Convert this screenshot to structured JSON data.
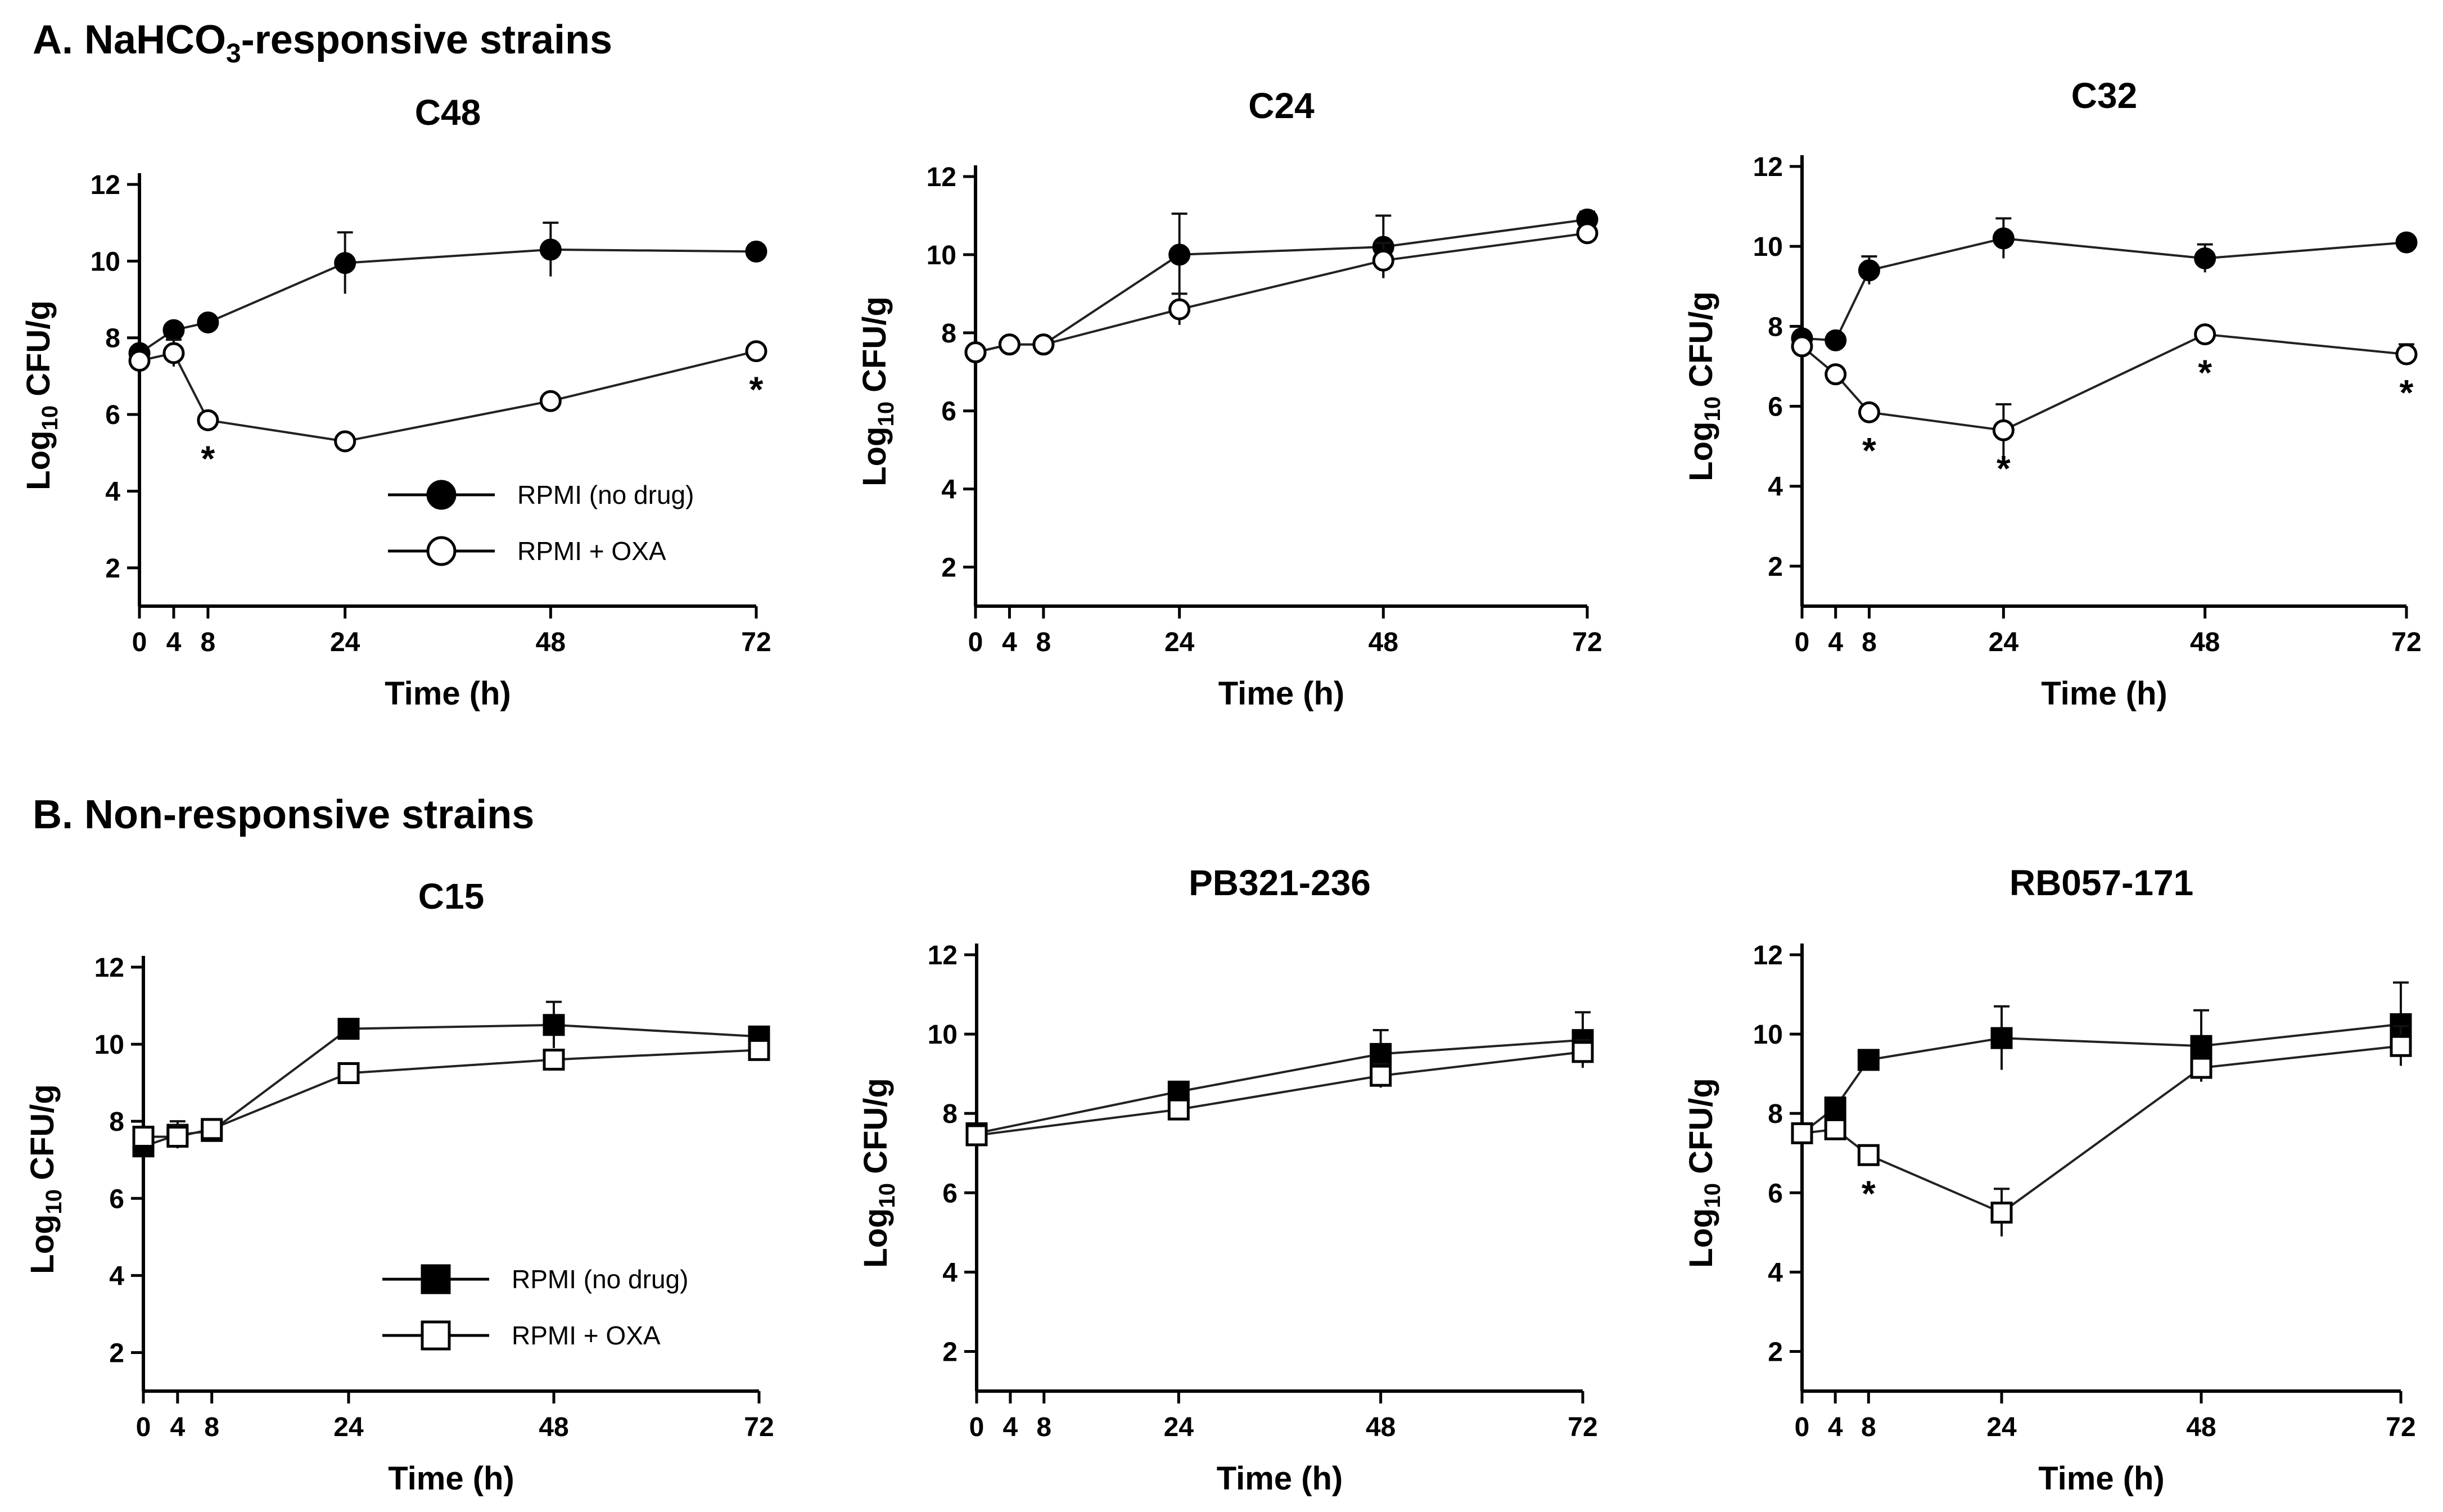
{
  "sections": [
    {
      "prefix": "A. NaHCO",
      "sub": "3",
      "suffix": "-responsive strains"
    },
    {
      "prefix": "B. Non-responsive strains",
      "sub": "",
      "suffix": ""
    }
  ],
  "chart_data": [
    {
      "type": "line",
      "section": 0,
      "title": "C48",
      "marker": "circle",
      "xlabel": "Time (h)",
      "ylabel_main": "Log",
      "ylabel_sub": "10",
      "ylabel_rest": " CFU/g",
      "xticks": [
        0,
        4,
        8,
        24,
        48,
        72
      ],
      "yticks": [
        2,
        4,
        6,
        8,
        10,
        12
      ],
      "xlim": [
        0,
        72
      ],
      "ylim": [
        1,
        12
      ],
      "series": [
        {
          "name": "RPMI (no drug)",
          "fill": "filled",
          "x": [
            0,
            4,
            8,
            24,
            48,
            72
          ],
          "y": [
            7.6,
            8.2,
            8.4,
            9.95,
            10.3,
            10.25
          ],
          "err": [
            0.15,
            0.1,
            0.1,
            0.8,
            0.7,
            0.1
          ]
        },
        {
          "name": "RPMI + OXA",
          "fill": "open",
          "x": [
            0,
            4,
            8,
            24,
            48,
            72
          ],
          "y": [
            7.4,
            7.6,
            5.85,
            5.3,
            6.35,
            7.65
          ],
          "err": [
            0.15,
            0.35,
            0.1,
            0.1,
            0.1,
            0.1
          ]
        }
      ],
      "significance": [
        {
          "x": 8,
          "y": 5.85
        },
        {
          "x": 72,
          "y": 7.65
        }
      ],
      "legend": [
        {
          "label": "RPMI (no drug)",
          "fill": "filled"
        },
        {
          "label": "RPMI + OXA",
          "fill": "open"
        }
      ]
    },
    {
      "type": "line",
      "section": 0,
      "title": "C24",
      "marker": "circle",
      "xlabel": "Time (h)",
      "ylabel_main": "Log",
      "ylabel_sub": "10",
      "ylabel_rest": " CFU/g",
      "xticks": [
        0,
        4,
        8,
        24,
        48,
        72
      ],
      "yticks": [
        2,
        4,
        6,
        8,
        10,
        12
      ],
      "xlim": [
        0,
        72
      ],
      "ylim": [
        1,
        12
      ],
      "series": [
        {
          "name": "RPMI (no drug)",
          "fill": "filled",
          "x": [
            0,
            4,
            8,
            24,
            48,
            72
          ],
          "y": [
            7.5,
            7.7,
            7.7,
            10.0,
            10.2,
            10.9
          ],
          "err": [
            0.1,
            0.1,
            0.1,
            1.05,
            0.8,
            0.2
          ]
        },
        {
          "name": "RPMI + OXA",
          "fill": "open",
          "x": [
            0,
            4,
            8,
            24,
            48,
            72
          ],
          "y": [
            7.5,
            7.7,
            7.7,
            8.6,
            9.85,
            10.55
          ],
          "err": [
            0.1,
            0.1,
            0.1,
            0.4,
            0.45,
            0.1
          ]
        }
      ],
      "significance": [],
      "legend": []
    },
    {
      "type": "line",
      "section": 0,
      "title": "C32",
      "marker": "circle",
      "xlabel": "Time (h)",
      "ylabel_main": "Log",
      "ylabel_sub": "10",
      "ylabel_rest": " CFU/g",
      "xticks": [
        0,
        4,
        8,
        24,
        48,
        72
      ],
      "yticks": [
        2,
        4,
        6,
        8,
        10,
        12
      ],
      "xlim": [
        0,
        72
      ],
      "ylim": [
        1,
        12
      ],
      "series": [
        {
          "name": "RPMI (no drug)",
          "fill": "filled",
          "x": [
            0,
            4,
            8,
            24,
            48,
            72
          ],
          "y": [
            7.7,
            7.65,
            9.4,
            10.2,
            9.7,
            10.1
          ],
          "err": [
            0.1,
            0.1,
            0.35,
            0.5,
            0.35,
            0.1
          ]
        },
        {
          "name": "RPMI + OXA",
          "fill": "open",
          "x": [
            0,
            4,
            8,
            24,
            48,
            72
          ],
          "y": [
            7.5,
            6.8,
            5.85,
            5.4,
            7.8,
            7.3
          ],
          "err": [
            0.1,
            0.1,
            0.1,
            0.65,
            0.1,
            0.25
          ]
        }
      ],
      "significance": [
        {
          "x": 8,
          "y": 5.85
        },
        {
          "x": 24,
          "y": 5.4
        },
        {
          "x": 48,
          "y": 7.8
        },
        {
          "x": 72,
          "y": 7.3
        }
      ],
      "legend": []
    },
    {
      "type": "line",
      "section": 1,
      "title": "C15",
      "marker": "square",
      "xlabel": "Time (h)",
      "ylabel_main": "Log",
      "ylabel_sub": "10",
      "ylabel_rest": " CFU/g",
      "xticks": [
        0,
        4,
        8,
        24,
        48,
        72
      ],
      "yticks": [
        2,
        4,
        6,
        8,
        10,
        12
      ],
      "xlim": [
        0,
        72
      ],
      "ylim": [
        1,
        12
      ],
      "series": [
        {
          "name": "RPMI (no drug)",
          "fill": "filled",
          "x": [
            0,
            4,
            8,
            24,
            48,
            72
          ],
          "y": [
            7.35,
            7.65,
            7.75,
            10.4,
            10.5,
            10.2
          ],
          "err": [
            0.1,
            0.35,
            0.15,
            0.1,
            0.6,
            0.1
          ]
        },
        {
          "name": "RPMI + OXA",
          "fill": "open",
          "x": [
            0,
            4,
            8,
            24,
            48,
            72
          ],
          "y": [
            7.6,
            7.6,
            7.8,
            9.25,
            9.6,
            9.85
          ],
          "err": [
            0.1,
            0.3,
            0.1,
            0.1,
            0.15,
            0.1
          ]
        }
      ],
      "significance": [],
      "legend": [
        {
          "label": "RPMI (no drug)",
          "fill": "filled"
        },
        {
          "label": "RPMI + OXA",
          "fill": "open"
        }
      ]
    },
    {
      "type": "line",
      "section": 1,
      "title": "PB321-236",
      "marker": "square",
      "xlabel": "Time (h)",
      "ylabel_main": "Log",
      "ylabel_sub": "10",
      "ylabel_rest": " CFU/g",
      "xticks": [
        0,
        4,
        8,
        24,
        48,
        72
      ],
      "yticks": [
        2,
        4,
        6,
        8,
        10,
        12
      ],
      "xlim": [
        0,
        72
      ],
      "ylim": [
        1,
        12
      ],
      "series": [
        {
          "name": "RPMI (no drug)",
          "fill": "filled",
          "x": [
            0,
            24,
            48,
            72
          ],
          "y": [
            7.5,
            8.55,
            9.5,
            9.85
          ],
          "err": [
            0.1,
            0.1,
            0.6,
            0.7
          ]
        },
        {
          "name": "RPMI + OXA",
          "fill": "open",
          "x": [
            0,
            24,
            48,
            72
          ],
          "y": [
            7.45,
            8.1,
            8.95,
            9.55
          ],
          "err": [
            0.1,
            0.1,
            0.3,
            0.3
          ]
        }
      ],
      "significance": [],
      "legend": []
    },
    {
      "type": "line",
      "section": 1,
      "title": "RB057-171",
      "marker": "square",
      "xlabel": "Time (h)",
      "ylabel_main": "Log",
      "ylabel_sub": "10",
      "ylabel_rest": " CFU/g",
      "xticks": [
        0,
        4,
        8,
        24,
        48,
        72
      ],
      "yticks": [
        2,
        4,
        6,
        8,
        10,
        12
      ],
      "xlim": [
        0,
        72
      ],
      "ylim": [
        1,
        12
      ],
      "series": [
        {
          "name": "RPMI (no drug)",
          "fill": "filled",
          "x": [
            0,
            4,
            8,
            24,
            48,
            72
          ],
          "y": [
            7.5,
            8.15,
            9.35,
            9.9,
            9.7,
            10.25
          ],
          "err": [
            0.1,
            0.15,
            0.1,
            0.8,
            0.9,
            1.05
          ]
        },
        {
          "name": "RPMI + OXA",
          "fill": "open",
          "x": [
            0,
            4,
            8,
            24,
            48,
            72
          ],
          "y": [
            7.5,
            7.6,
            6.95,
            5.5,
            9.15,
            9.7
          ],
          "err": [
            0.1,
            0.1,
            0.1,
            0.6,
            0.2,
            0.5
          ]
        }
      ],
      "significance": [
        {
          "x": 8,
          "y": 6.95
        }
      ],
      "legend": []
    }
  ]
}
